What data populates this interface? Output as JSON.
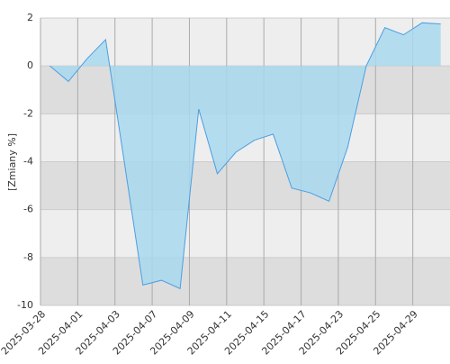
{
  "chart_data": {
    "type": "area",
    "y_label": "[Zmiany %]",
    "categories": [
      "2025-03-28",
      null,
      "2025-04-01",
      null,
      "2025-04-03",
      null,
      "2025-04-07",
      null,
      "2025-04-09",
      null,
      "2025-04-11",
      null,
      "2025-04-15",
      null,
      "2025-04-17",
      null,
      "2025-04-23",
      null,
      "2025-04-25",
      null,
      "2025-04-29",
      null
    ],
    "values": [
      0,
      -0.65,
      0.3,
      1.1,
      -4,
      -9.15,
      -8.95,
      -9.3,
      -1.8,
      -4.5,
      -3.6,
      -3.1,
      -2.85,
      -5.1,
      -5.3,
      -5.65,
      -3.4,
      0,
      1.6,
      1.3,
      1.8,
      1.75
    ],
    "color": "#4a9fe0",
    "fill": "#a9d8ee",
    "ylim": [
      -10,
      2
    ],
    "yticks": [
      -10,
      -8,
      -6,
      -4,
      -2,
      0,
      2
    ],
    "grid": true
  }
}
